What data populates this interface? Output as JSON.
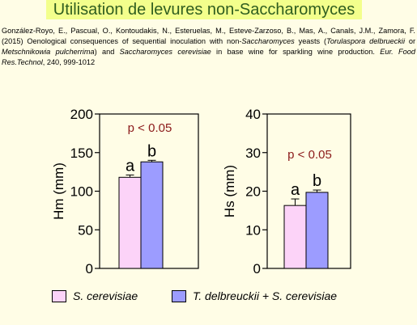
{
  "header": {
    "title": "Utilisation de levures non-Saccharomyces"
  },
  "reference": {
    "authors_text": "González-Royo, E., Pascual, O., Kontoudakis, N., Esteruelas, M., Esteve-Zarzoso, B., Mas, A., Canals, J.M., Zamora, F. (2015) Oenological consequences of sequential inoculation with non-",
    "italic_1": "Saccharomyces",
    "text_2": " yeasts (",
    "italic_2": "Torulaspora delbrueckii",
    "text_3": " or ",
    "italic_3": "Metschnikowia pulcherrima",
    "text_4": ") and ",
    "italic_4": "Saccharomyces cerevisiae",
    "text_5": " in base wine for sparkling wine production. ",
    "italic_5": "Eur. Food Res.Technol",
    "text_6": ", 240, 999-1012"
  },
  "colors": {
    "series1": "#fcd3f8",
    "series2": "#9c9cff",
    "pvalue": "#8b1a1a"
  },
  "chart_data": [
    {
      "type": "bar",
      "categories": [
        "S. cerevisiae",
        "T. delbreuckii + S. cerevisiae"
      ],
      "values": [
        118,
        138
      ],
      "errors": [
        3,
        2
      ],
      "letters": [
        "a",
        "b"
      ],
      "ylabel": "Hm (mm)",
      "ylim": [
        0,
        200
      ],
      "yticks": [
        0,
        50,
        100,
        150,
        200
      ],
      "annotation": "p < 0.05"
    },
    {
      "type": "bar",
      "categories": [
        "S. cerevisiae",
        "T. delbreuckii + S. cerevisiae"
      ],
      "values": [
        16.3,
        19.7
      ],
      "errors": [
        1.7,
        0.6
      ],
      "letters": [
        "a",
        "b"
      ],
      "ylabel": "Hs (mm)",
      "ylim": [
        0,
        40
      ],
      "yticks": [
        0,
        10,
        20,
        30,
        40
      ],
      "annotation": "p < 0.05"
    }
  ],
  "legend": [
    {
      "label": "S. cerevisiae"
    },
    {
      "label": "T. delbreuckii + S. cerevisiae"
    }
  ]
}
